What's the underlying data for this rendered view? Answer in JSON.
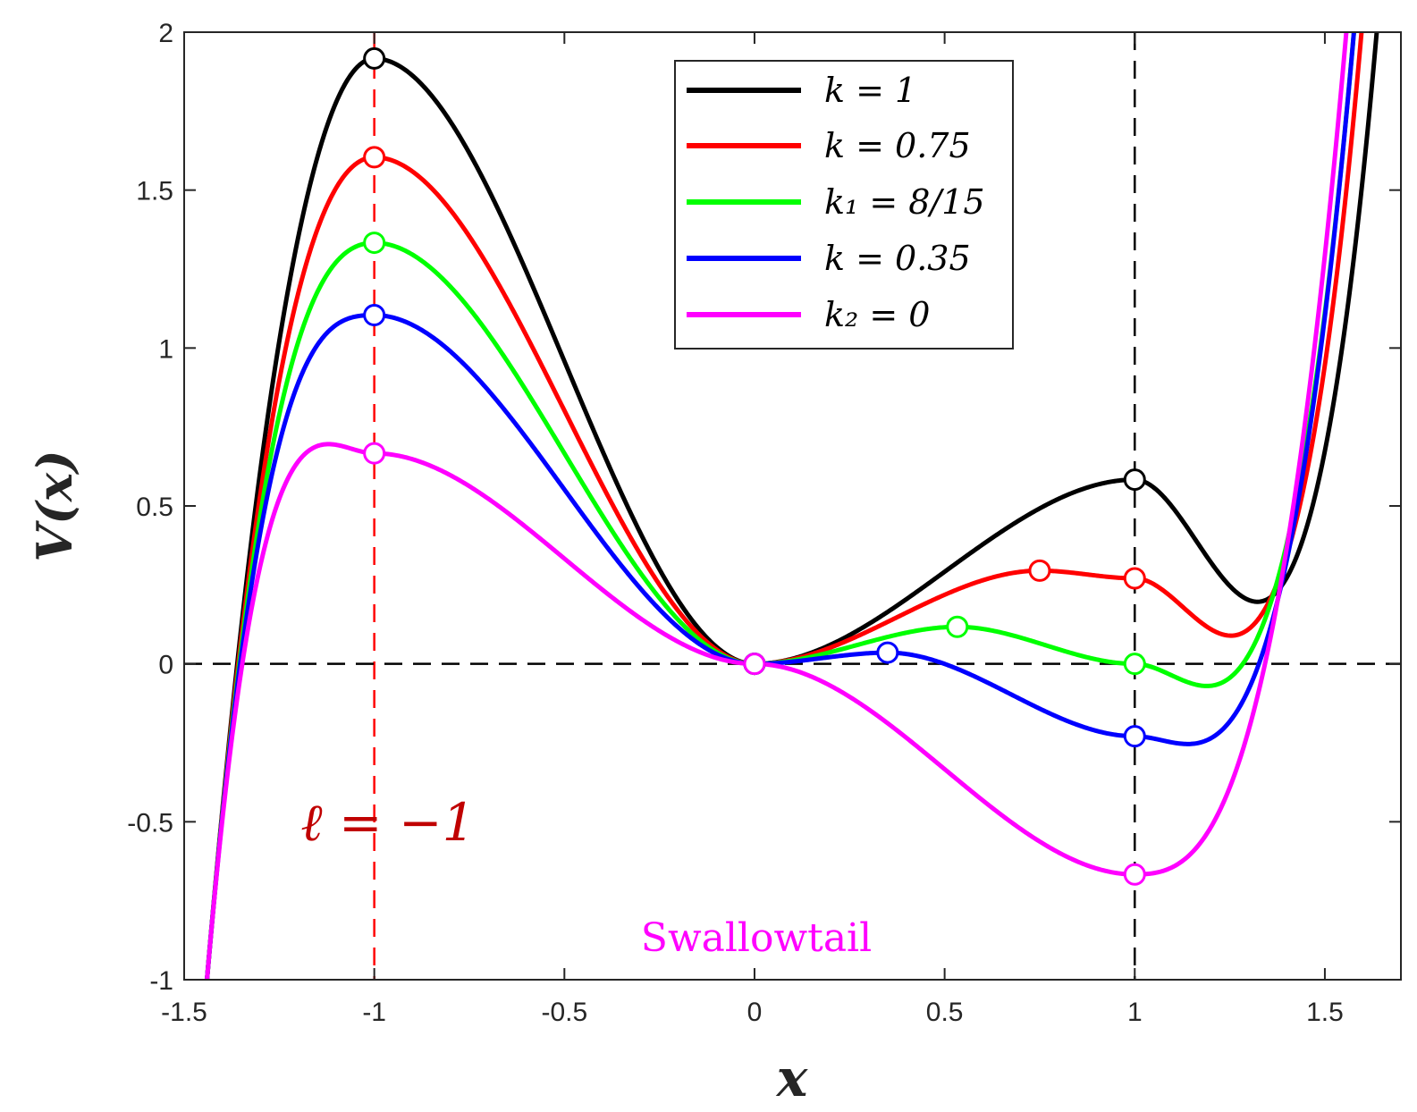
{
  "chart_data": {
    "type": "line",
    "title": "",
    "xlabel": "x",
    "ylabel": "V(x)",
    "xlim": [
      -1.5,
      1.7
    ],
    "ylim": [
      -1,
      2
    ],
    "xticks": [
      -1.5,
      -1,
      -0.5,
      0,
      0.5,
      1,
      1.5
    ],
    "xtick_labels": [
      "-1.5",
      "-1",
      "-0.5",
      "0",
      "0.5",
      "1",
      "1.5"
    ],
    "yticks": [
      -1,
      -0.5,
      0,
      0.5,
      1,
      1.5,
      2
    ],
    "ytick_labels": [
      "-1",
      "-0.5",
      "0",
      "0.5",
      "1",
      "1.5",
      "2"
    ],
    "grid": false,
    "legend_position": "top-right",
    "series": [
      {
        "name": "k = 1",
        "k": 1,
        "color": "#000000",
        "critical_points": [
          [
            -1,
            1.9167
          ],
          [
            0,
            0
          ],
          [
            1,
            0.5833
          ]
        ]
      },
      {
        "name": "k = 0.75",
        "k": 0.75,
        "color": "#ff0000",
        "critical_points": [
          [
            -1,
            1.6042
          ],
          [
            0,
            0
          ],
          [
            0.75,
            0.2952
          ],
          [
            1,
            0.2708
          ]
        ]
      },
      {
        "name": "k₁ = 8/15",
        "k": 0.5333333,
        "color": "#00ff00",
        "critical_points": [
          [
            -1,
            1.3333
          ],
          [
            0,
            0
          ],
          [
            0.5333,
            0.1172
          ],
          [
            1,
            0
          ]
        ]
      },
      {
        "name": "k = 0.35",
        "k": 0.35,
        "color": "#0000ff",
        "critical_points": [
          [
            -1,
            1.1042
          ],
          [
            0,
            0
          ],
          [
            0.35,
            0.0356
          ],
          [
            1,
            -0.2292
          ]
        ]
      },
      {
        "name": "k₂ = 0",
        "k": 0,
        "color": "#ff00ff",
        "critical_points": [
          [
            -1,
            0.6667
          ],
          [
            0,
            0
          ],
          [
            1,
            -0.6667
          ]
        ]
      }
    ],
    "reference_lines": [
      {
        "type": "vertical",
        "x": -1,
        "color": "#ff0000",
        "style": "dashed"
      },
      {
        "type": "vertical",
        "x": 1,
        "color": "#000000",
        "style": "dashed"
      },
      {
        "type": "horizontal",
        "y": 0,
        "color": "#000000",
        "style": "dashed"
      }
    ],
    "annotations": [
      {
        "text": "ℓ = −1",
        "x": -1,
        "y": -0.5,
        "color": "#c00000"
      },
      {
        "text": "Swallowtail",
        "x": 0,
        "y": -0.86,
        "color": "#ff00ff"
      }
    ]
  }
}
